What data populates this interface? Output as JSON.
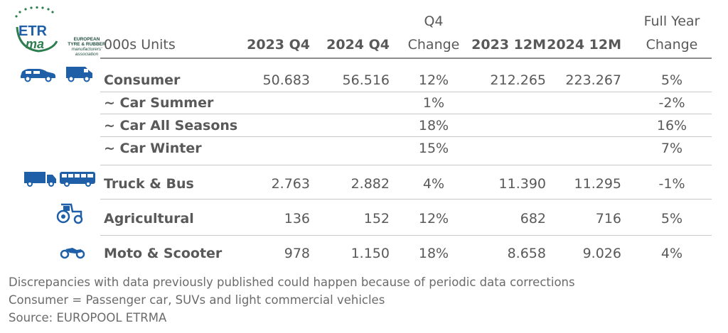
{
  "logo": {
    "mark": "ETR ma",
    "name_line1": "EUROPEAN",
    "name_line2": "TYRE & RUBBER",
    "name_line3": "manufacturers'",
    "name_line4": "association"
  },
  "header": {
    "units": "000s Units",
    "q4_2023": "2023 Q4",
    "q4_2024": "2024 Q4",
    "q4_change_top": "Q4",
    "q4_change_bottom": "Change",
    "m12_2023": "2023 12M",
    "m12_2024": "2024 12M",
    "fy_change_top": "Full Year",
    "fy_change_bottom": "Change"
  },
  "rows": [
    {
      "label": "Consumer",
      "q4_2023": "50.683",
      "q4_2024": "56.516",
      "q4_change": "12%",
      "m12_2023": "212.265",
      "m12_2024": "223.267",
      "fy_change": "5%"
    },
    {
      "label": "~ Car Summer",
      "q4_2023": "",
      "q4_2024": "",
      "q4_change": "1%",
      "m12_2023": "",
      "m12_2024": "",
      "fy_change": "-2%"
    },
    {
      "label": "~ Car All Seasons",
      "q4_2023": "",
      "q4_2024": "",
      "q4_change": "18%",
      "m12_2023": "",
      "m12_2024": "",
      "fy_change": "16%"
    },
    {
      "label": "~ Car Winter",
      "q4_2023": "",
      "q4_2024": "",
      "q4_change": "15%",
      "m12_2023": "",
      "m12_2024": "",
      "fy_change": "7%"
    },
    {
      "label": "Truck & Bus",
      "q4_2023": "2.763",
      "q4_2024": "2.882",
      "q4_change": "4%",
      "m12_2023": "11.390",
      "m12_2024": "11.295",
      "fy_change": "-1%"
    },
    {
      "label": "Agricultural",
      "q4_2023": "136",
      "q4_2024": "152",
      "q4_change": "12%",
      "m12_2023": "682",
      "m12_2024": "716",
      "fy_change": "5%"
    },
    {
      "label": "Moto & Scooter",
      "q4_2023": "978",
      "q4_2024": "1.150",
      "q4_change": "18%",
      "m12_2023": "8.658",
      "m12_2024": "9.026",
      "fy_change": "4%"
    }
  ],
  "footnotes": [
    "Discrepancies with data previously published could happen because of periodic data corrections",
    "Consumer = Passenger car, SUVs and light commercial vehicles",
    "Source: EUROPOOL ETRMA"
  ],
  "colors": {
    "icon_blue": "#1f5fa8",
    "logo_green": "#2e7d4f",
    "logo_blue": "#1f5fa8"
  }
}
